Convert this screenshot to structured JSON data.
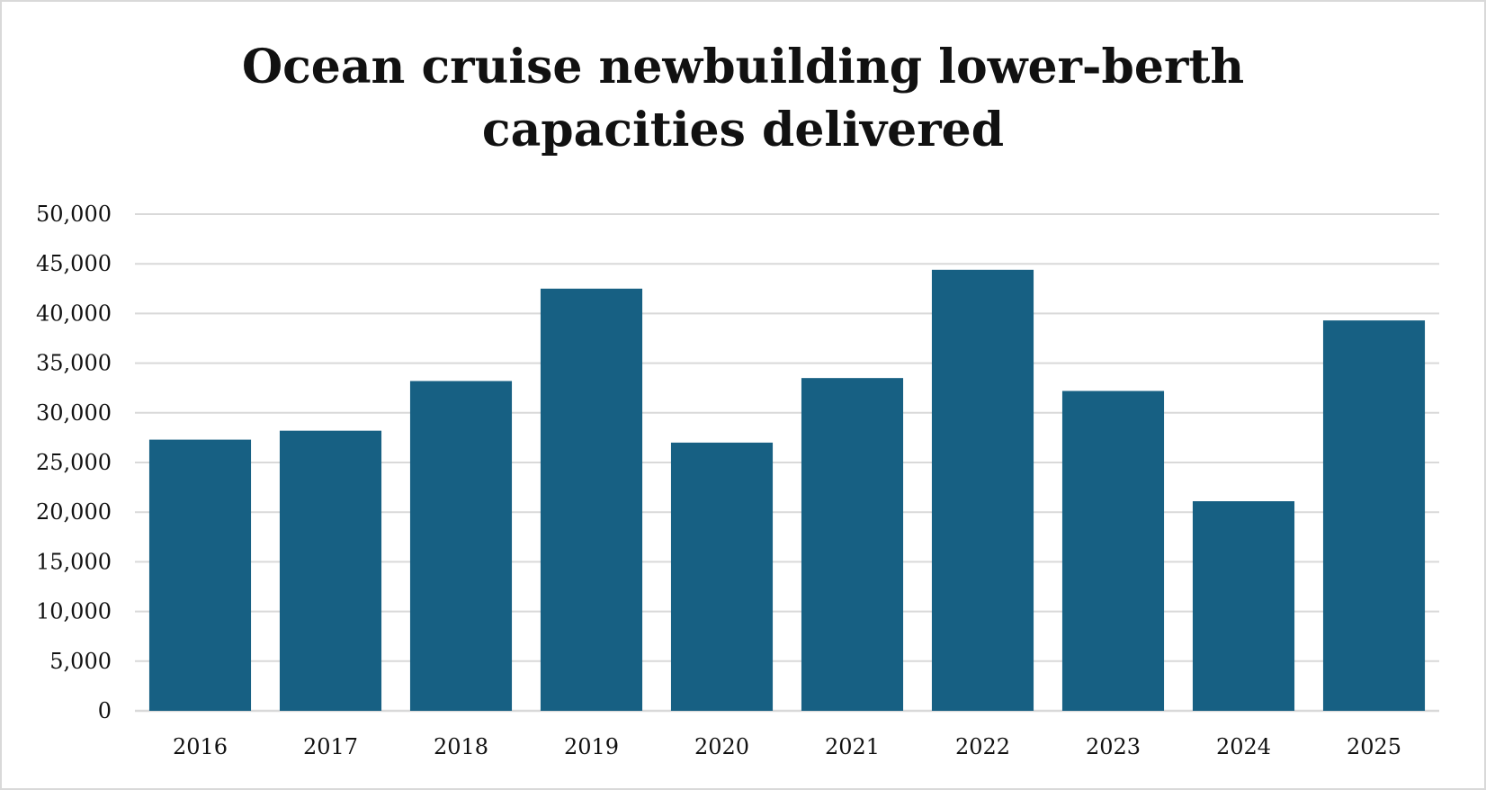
{
  "colors": {
    "bar": "#176083",
    "grid": "#d9d9d9",
    "border": "#d9d9d9",
    "text": "#111111",
    "background": "#ffffff"
  },
  "chart_data": {
    "type": "bar",
    "title_lines": [
      "Ocean cruise newbuilding lower-berth",
      "capacities delivered"
    ],
    "xlabel": "",
    "ylabel": "",
    "categories": [
      "2016",
      "2017",
      "2018",
      "2019",
      "2020",
      "2021",
      "2022",
      "2023",
      "2024",
      "2025"
    ],
    "values": [
      27300,
      28200,
      33200,
      42500,
      27000,
      33500,
      44400,
      32200,
      21100,
      39300
    ],
    "ylim": [
      0,
      50000
    ],
    "yticks": [
      0,
      5000,
      10000,
      15000,
      20000,
      25000,
      30000,
      35000,
      40000,
      45000,
      50000
    ],
    "ytick_labels": [
      "0",
      "5,000",
      "10,000",
      "15,000",
      "20,000",
      "25,000",
      "30,000",
      "35,000",
      "40,000",
      "45,000",
      "50,000"
    ],
    "grid": true,
    "legend": "none"
  }
}
